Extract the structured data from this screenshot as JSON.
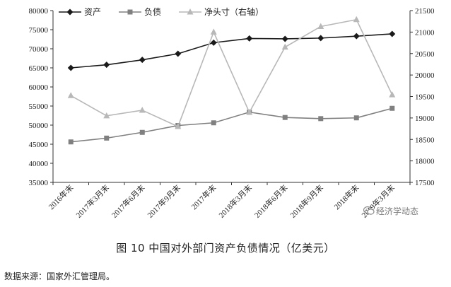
{
  "chart_data": {
    "type": "line",
    "categories": [
      "2016年末",
      "2017年3月末",
      "2017年6月末",
      "2017年9月末",
      "2017年末",
      "2018年3月末",
      "2018年6月末",
      "2018年9月末",
      "2018年末",
      "2019年3月末"
    ],
    "series": [
      {
        "name": "资产",
        "axis": "left",
        "color": "#1a1a1a",
        "marker": "diamond",
        "values": [
          65000,
          65800,
          67100,
          68700,
          71600,
          72700,
          72600,
          72800,
          73300,
          73900
        ]
      },
      {
        "name": "负债",
        "axis": "left",
        "color": "#808080",
        "marker": "square",
        "values": [
          45600,
          46600,
          48100,
          49900,
          50600,
          53400,
          52000,
          51700,
          51900,
          54400
        ]
      },
      {
        "name": "净头寸（右轴）",
        "axis": "right",
        "color": "#b8b8b8",
        "marker": "triangle",
        "values": [
          19520,
          19050,
          19180,
          18800,
          21000,
          19130,
          20650,
          21130,
          21290,
          19540
        ]
      }
    ],
    "y_left": {
      "min": 35000,
      "max": 80000,
      "step": 5000,
      "ticks": [
        "35000",
        "40000",
        "45000",
        "50000",
        "55000",
        "60000",
        "65000",
        "70000",
        "75000",
        "80000"
      ]
    },
    "y_right": {
      "min": 17500,
      "max": 21500,
      "step": 500,
      "ticks": [
        "17500",
        "18000",
        "18500",
        "19000",
        "19500",
        "20000",
        "20500",
        "21000",
        "21500"
      ]
    },
    "grid": false,
    "legend_position": "top-left"
  },
  "caption": "图 10  中国对外部门资产负债情况（亿美元）",
  "source": "数据来源：国家外汇管理局。",
  "watermark": "经济学动态"
}
